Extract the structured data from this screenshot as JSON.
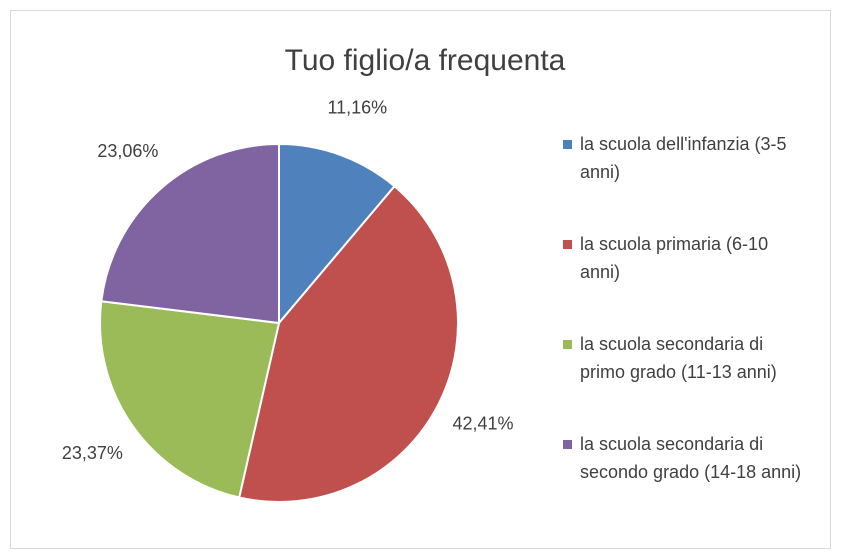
{
  "chart_data": {
    "type": "pie",
    "title": "Tuo figlio/a frequenta",
    "categories": [
      "la scuola dell'infanzia (3-5 anni)",
      "la scuola primaria (6-10 anni)",
      "la scuola secondaria di primo grado (11-13 anni)",
      "la scuola secondaria di secondo grado (14-18 anni)"
    ],
    "values": [
      11.16,
      42.41,
      23.37,
      23.06
    ],
    "value_labels": [
      "11,16%",
      "42,41%",
      "23,37%",
      "23,06%"
    ],
    "colors": [
      "#4f81bd",
      "#c0504d",
      "#9bbb59",
      "#8064a2"
    ],
    "legend": "right"
  }
}
